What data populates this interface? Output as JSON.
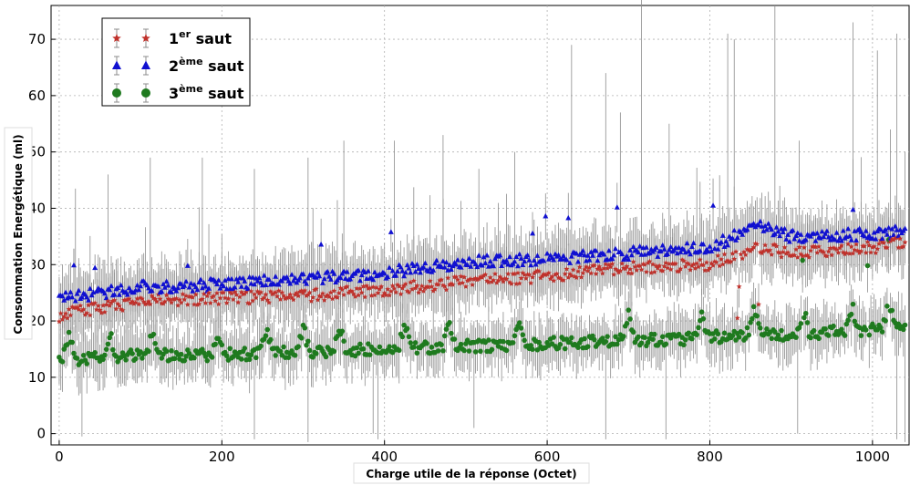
{
  "chart_data": {
    "type": "scatter",
    "title": "",
    "xlabel": "Charge utile de la réponse (Octet)",
    "ylabel": "Consommation Energétique (ml)",
    "xlim": [
      -10,
      1045
    ],
    "ylim": [
      -2,
      76
    ],
    "xticks": [
      0,
      200,
      400,
      600,
      800,
      1000
    ],
    "yticks": [
      0,
      10,
      20,
      30,
      40,
      50,
      60,
      70
    ],
    "grid": true,
    "error_bars": true,
    "legend_placement": "top-left",
    "x_step": 2,
    "series": [
      {
        "legend_main": "1",
        "legend_sup": "er",
        "legend_tail": " saut",
        "marker": "star",
        "color": "#c0312b",
        "trend": [
          [
            0,
            21
          ],
          [
            100,
            23.5
          ],
          [
            200,
            24
          ],
          [
            300,
            24.5
          ],
          [
            400,
            25.5
          ],
          [
            500,
            27
          ],
          [
            600,
            28
          ],
          [
            700,
            29.5
          ],
          [
            800,
            30
          ],
          [
            860,
            33
          ],
          [
            900,
            32
          ],
          [
            1000,
            33
          ],
          [
            1040,
            34
          ]
        ]
      },
      {
        "legend_main": "2",
        "legend_sup": "ème",
        "legend_tail": " saut",
        "marker": "triangle",
        "color": "#1010d0",
        "trend": [
          [
            0,
            24
          ],
          [
            100,
            26
          ],
          [
            200,
            26.5
          ],
          [
            300,
            27.5
          ],
          [
            400,
            28.5
          ],
          [
            500,
            30.5
          ],
          [
            600,
            31
          ],
          [
            700,
            32
          ],
          [
            800,
            33
          ],
          [
            860,
            37
          ],
          [
            900,
            35
          ],
          [
            1000,
            35.5
          ],
          [
            1040,
            36
          ]
        ]
      },
      {
        "legend_main": "3",
        "legend_sup": "ème",
        "legend_tail": " saut",
        "marker": "circle",
        "color": "#1f7a1f",
        "trend": [
          [
            0,
            13
          ],
          [
            50,
            13.5
          ],
          [
            100,
            14
          ],
          [
            200,
            14
          ],
          [
            300,
            14.5
          ],
          [
            400,
            15
          ],
          [
            500,
            15.5
          ],
          [
            600,
            16
          ],
          [
            700,
            16.5
          ],
          [
            800,
            17
          ],
          [
            860,
            18
          ],
          [
            900,
            17.5
          ],
          [
            1000,
            18.5
          ],
          [
            1040,
            19
          ]
        ]
      }
    ],
    "bumps": [
      12,
      62,
      115,
      195,
      255,
      300,
      345,
      425,
      480,
      565,
      700,
      790,
      855,
      915,
      975,
      1020
    ],
    "spikes": [
      {
        "x": 20,
        "hi": 43.5
      },
      {
        "x": 60,
        "hi": 46
      },
      {
        "x": 112,
        "hi": 49
      },
      {
        "x": 175,
        "hi": 49
      },
      {
        "x": 240,
        "hi": 47
      },
      {
        "x": 305,
        "hi": 49
      },
      {
        "x": 350,
        "hi": 52
      },
      {
        "x": 412,
        "hi": 52
      },
      {
        "x": 472,
        "hi": 53
      },
      {
        "x": 515,
        "hi": 47
      },
      {
        "x": 560,
        "hi": 50
      },
      {
        "x": 630,
        "hi": 69
      },
      {
        "x": 672,
        "hi": 64
      },
      {
        "x": 690,
        "hi": 57
      },
      {
        "x": 715,
        "hi": 80
      },
      {
        "x": 750,
        "hi": 55
      },
      {
        "x": 822,
        "hi": 71
      },
      {
        "x": 830,
        "hi": 70
      },
      {
        "x": 880,
        "hi": 76
      },
      {
        "x": 910,
        "hi": 52
      },
      {
        "x": 975,
        "hi": 73
      },
      {
        "x": 1005,
        "hi": 68
      },
      {
        "x": 1022,
        "hi": 54
      },
      {
        "x": 1030,
        "hi": 71
      },
      {
        "x": 1040,
        "hi": 50
      }
    ],
    "dips": [
      {
        "x": 28,
        "lo": -0.5
      },
      {
        "x": 240,
        "lo": -1
      },
      {
        "x": 305,
        "lo": -1.5
      },
      {
        "x": 385,
        "lo": 0
      },
      {
        "x": 392,
        "lo": -1
      },
      {
        "x": 510,
        "lo": 1
      },
      {
        "x": 672,
        "lo": -1
      },
      {
        "x": 745,
        "lo": -1
      },
      {
        "x": 908,
        "lo": 0
      },
      {
        "x": 1030,
        "lo": -1
      },
      {
        "x": 1040,
        "lo": -1.5
      }
    ]
  }
}
